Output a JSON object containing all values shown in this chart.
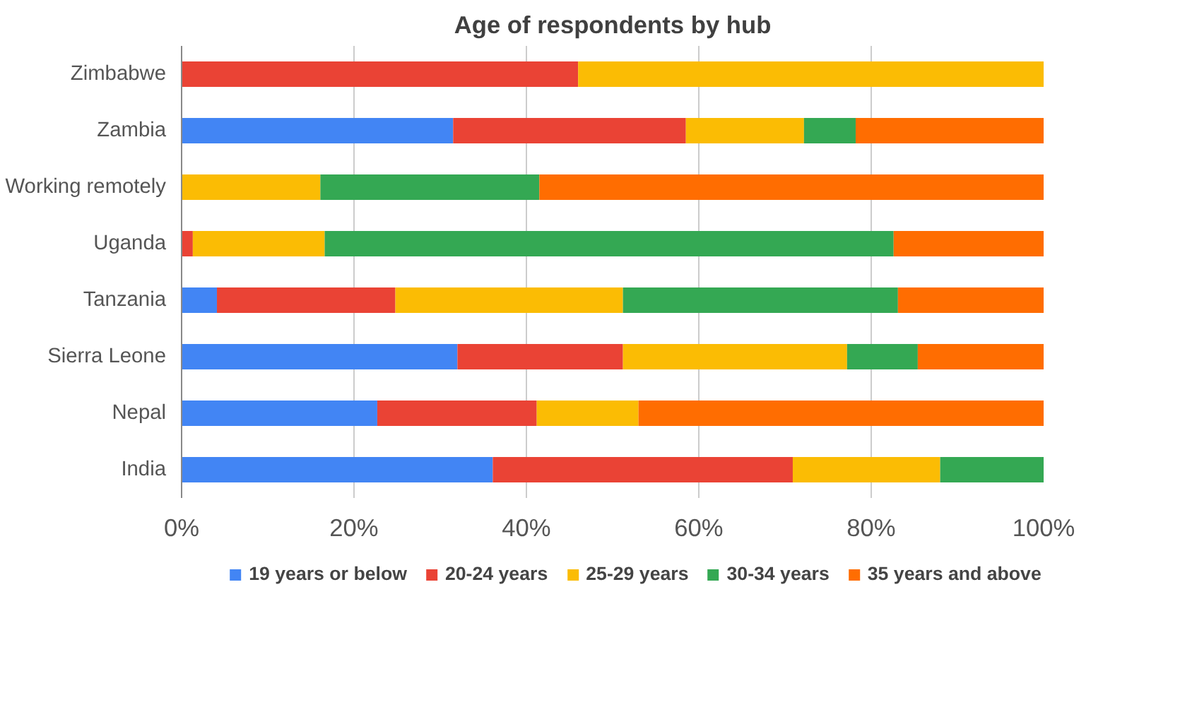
{
  "chart_data": {
    "type": "bar",
    "title": "Age of respondents by hub",
    "orientation": "horizontal",
    "stacked": true,
    "categories": [
      "Zimbabwe",
      "Zambia",
      "Working remotely",
      "Uganda",
      "Tanzania",
      "Sierra Leone",
      "Nepal",
      "India"
    ],
    "series": [
      {
        "name": "19 years or below",
        "color": "#4285f4",
        "values": [
          0,
          31.5,
          0,
          0,
          4.1,
          32.0,
          22.7,
          36.1
        ]
      },
      {
        "name": "20-24 years",
        "color": "#ea4335",
        "values": [
          46.0,
          27.0,
          0,
          1.3,
          20.7,
          19.2,
          18.5,
          34.8
        ]
      },
      {
        "name": "25-29 years",
        "color": "#fbbc04",
        "values": [
          54.0,
          13.7,
          16.1,
          15.3,
          26.4,
          26.0,
          11.8,
          17.1
        ]
      },
      {
        "name": "30-34 years",
        "color": "#34a853",
        "values": [
          0,
          6.0,
          25.4,
          66.0,
          31.9,
          8.2,
          0,
          12.0
        ]
      },
      {
        "name": "35 years and above",
        "color": "#ff6d01",
        "values": [
          0,
          21.8,
          58.5,
          17.4,
          16.9,
          14.6,
          47.0,
          0
        ]
      }
    ],
    "xlim": [
      0,
      100
    ],
    "xticks": [
      {
        "value": 0,
        "label": "0%"
      },
      {
        "value": 20,
        "label": "20%"
      },
      {
        "value": 40,
        "label": "40%"
      },
      {
        "value": 60,
        "label": "60%"
      },
      {
        "value": 80,
        "label": "80%"
      },
      {
        "value": 100,
        "label": "100%"
      }
    ],
    "grid": "x",
    "legend": "bottom"
  }
}
